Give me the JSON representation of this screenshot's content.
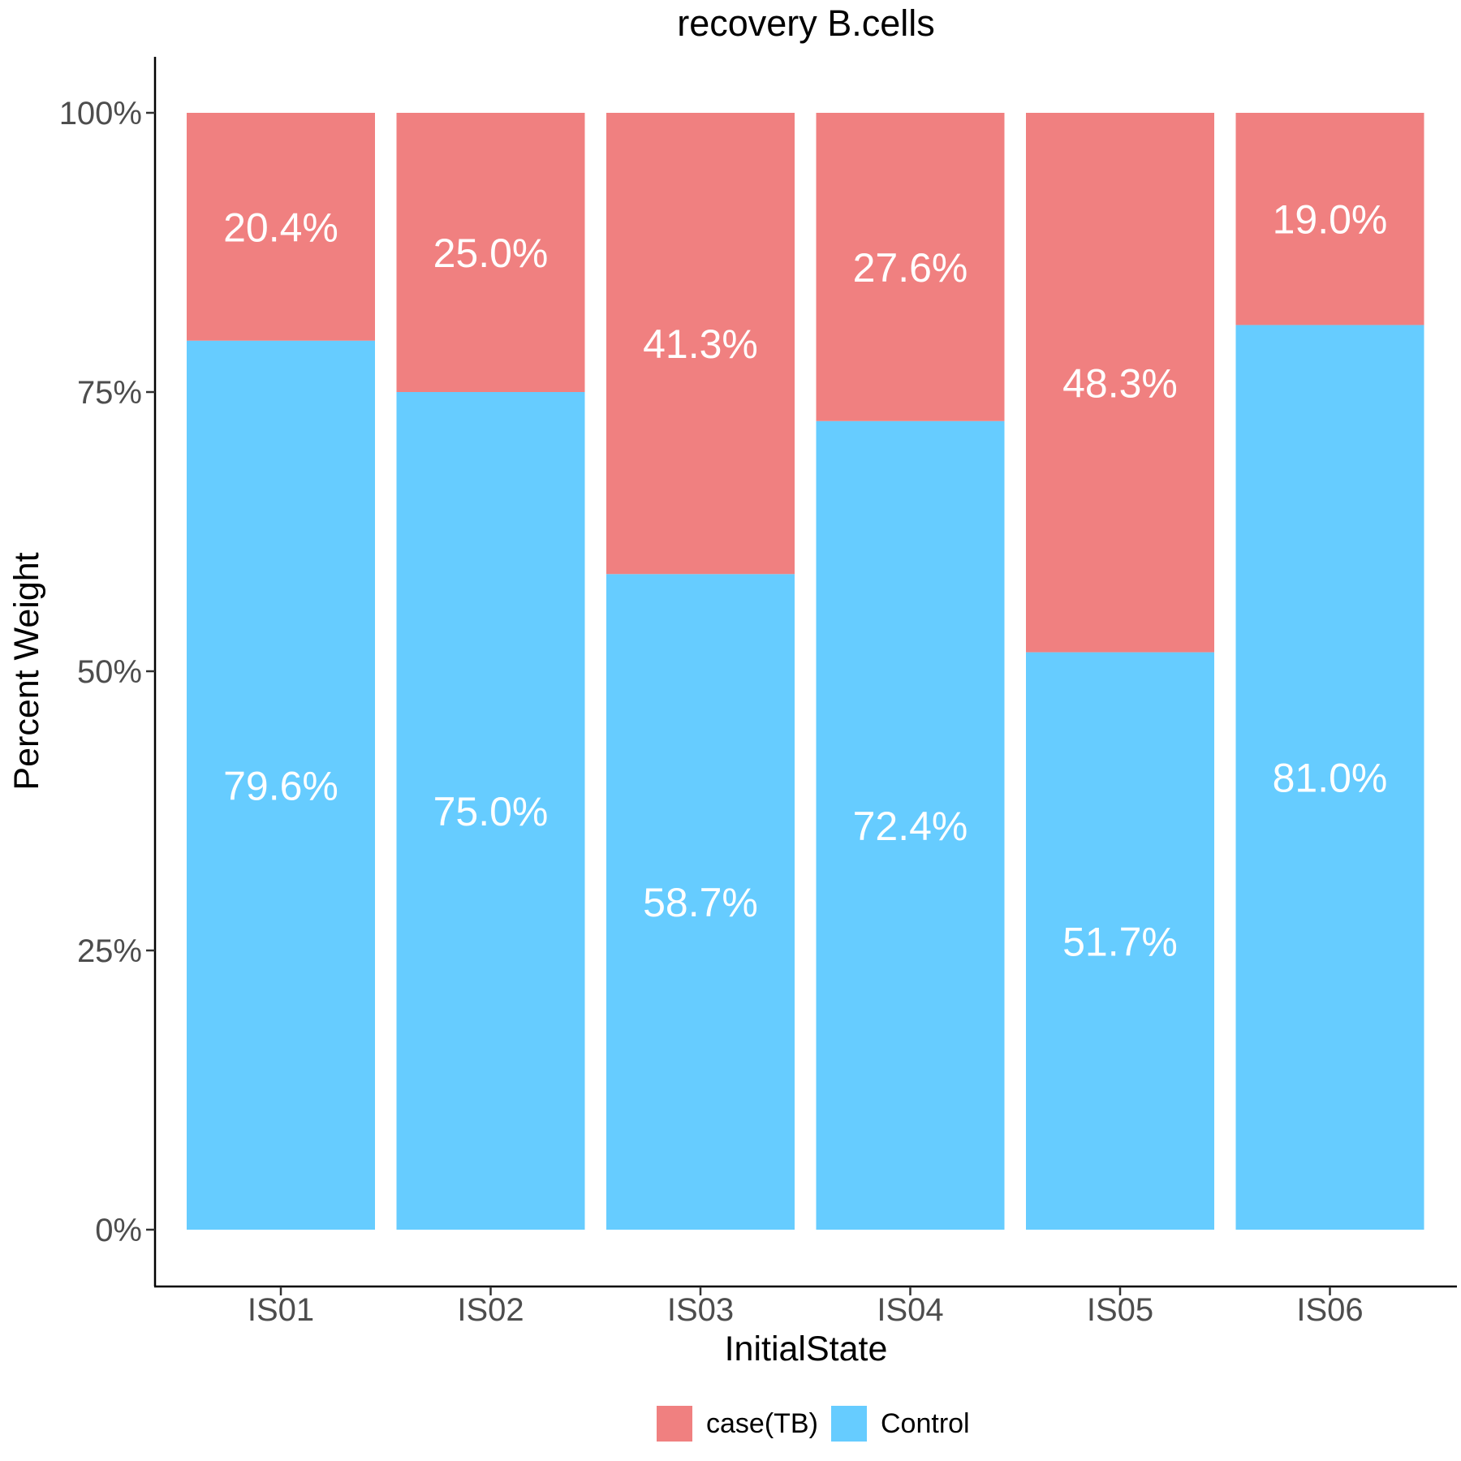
{
  "chart_data": {
    "type": "bar",
    "stacked": true,
    "normalized": true,
    "title": "recovery B.cells",
    "xlabel": "InitialState",
    "ylabel": "Percent Weight",
    "categories": [
      "IS01",
      "IS02",
      "IS03",
      "IS04",
      "IS05",
      "IS06"
    ],
    "ylim": [
      0,
      100
    ],
    "yticks": [
      0,
      25,
      50,
      75,
      100
    ],
    "ytick_labels": [
      "0%",
      "25%",
      "50%",
      "75%",
      "100%"
    ],
    "series": [
      {
        "name": "Control",
        "color": "#66ccff",
        "values": [
          79.6,
          75.0,
          58.7,
          72.4,
          51.7,
          81.0
        ],
        "labels": [
          "79.6%",
          "75.0%",
          "58.7%",
          "72.4%",
          "51.7%",
          "81.0%"
        ]
      },
      {
        "name": "case(TB)",
        "color": "#f08080",
        "values": [
          20.4,
          25.0,
          41.3,
          27.6,
          48.3,
          19.0
        ],
        "labels": [
          "20.4%",
          "25.0%",
          "41.3%",
          "27.6%",
          "48.3%",
          "19.0%"
        ]
      }
    ],
    "legend": {
      "position": "bottom",
      "entries": [
        {
          "label": "case(TB)",
          "color": "#f08080"
        },
        {
          "label": "Control",
          "color": "#66ccff"
        }
      ]
    },
    "grid": false
  }
}
